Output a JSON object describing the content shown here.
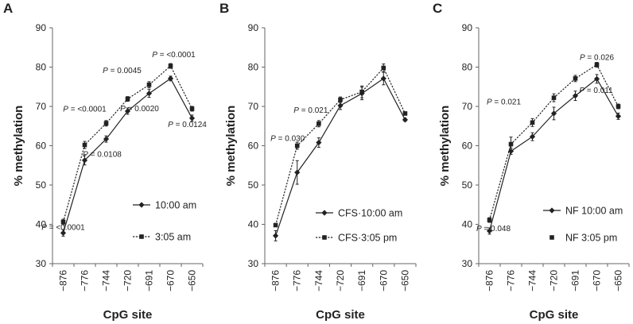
{
  "chart_data": [
    {
      "type": "line",
      "panel_label": "A",
      "categories": [
        "−876",
        "−776",
        "−744",
        "−720",
        "−691",
        "−670",
        "−650"
      ],
      "xlabel": "CpG site",
      "ylabel": "% methylation",
      "ylim": [
        30,
        90
      ],
      "yticks": [
        "30",
        "40",
        "50",
        "60",
        "70",
        "80",
        "90"
      ],
      "series": [
        {
          "name": "10:00 am",
          "line": "solid",
          "marker": "diamond",
          "legend_text": "10:00 am",
          "values": [
            37.8,
            56.3,
            61.7,
            68.8,
            73.3,
            77.1,
            67.0
          ],
          "errors": [
            0.8,
            1.2,
            0.8,
            0.8,
            1.0,
            0.6,
            0.8
          ]
        },
        {
          "name": "3:05 am",
          "line": "dotted",
          "marker": "square",
          "legend_text": "3:05 am",
          "values": [
            40.6,
            60.2,
            65.7,
            71.9,
            75.5,
            80.3,
            69.4
          ],
          "errors": [
            0.7,
            0.9,
            0.7,
            0.6,
            0.8,
            0.6,
            0.6
          ]
        }
      ],
      "annotations": [
        {
          "italic": "P",
          "text": " = <0.0001",
          "point": 0,
          "dx": 0,
          "dy": 10
        },
        {
          "italic": "P",
          "text": " = 0.0108",
          "point": 1,
          "dx": 22,
          "dy": 15
        },
        {
          "italic": "P",
          "text": " = <0.0001",
          "point": 1,
          "dx": 0,
          "dy": -42
        },
        {
          "italic": "P",
          "text": " = 0.0020",
          "point": 4,
          "dx": -12,
          "dy": 33
        },
        {
          "italic": "P",
          "text": " = 0.0045",
          "point": 4,
          "dx": -34,
          "dy": -15
        },
        {
          "italic": "P",
          "text": " = <0.0001",
          "point": 5,
          "dx": 4,
          "dy": -11
        },
        {
          "italic": "P",
          "text": " = 0.0124",
          "point": 6,
          "dx": -6,
          "dy": 23
        }
      ]
    },
    {
      "type": "line",
      "panel_label": "B",
      "categories": [
        "−876",
        "−776",
        "−744",
        "−720",
        "−691",
        "−670",
        "−650"
      ],
      "xlabel": "CpG site",
      "ylabel": "% methylation",
      "ylim": [
        30,
        90
      ],
      "yticks": [
        "30",
        "40",
        "50",
        "60",
        "70",
        "80",
        "90"
      ],
      "series": [
        {
          "name": "CFS 10:00 am",
          "line": "solid",
          "marker": "diamond",
          "legend_text": "CFS·10:00 am",
          "values": [
            37.1,
            53.2,
            60.8,
            70.2,
            73.3,
            77.1,
            66.6
          ],
          "errors": [
            1.3,
            3.0,
            1.2,
            1.0,
            1.6,
            1.6,
            0.4
          ]
        },
        {
          "name": "CFS 3:05 pm",
          "line": "dotted",
          "marker": "square",
          "legend_text": "CFS·3:05 pm",
          "values": [
            39.8,
            60.0,
            65.6,
            71.7,
            73.7,
            79.8,
            68.2
          ],
          "errors": [
            0.4,
            0.9,
            0.8,
            0.7,
            1.5,
            1.0,
            0.3
          ]
        }
      ],
      "annotations": [
        {
          "italic": "P",
          "text": " = 0.030",
          "point": 1,
          "dx": -12,
          "dy": -6
        },
        {
          "italic": "P",
          "text": " = 0.021",
          "point": 2,
          "dx": -10,
          "dy": -14
        }
      ]
    },
    {
      "type": "line",
      "panel_label": "C",
      "categories": [
        "−876",
        "−776",
        "−744",
        "−720",
        "−691",
        "−670",
        "−650"
      ],
      "xlabel": "CpG site",
      "ylabel": "% methylation",
      "ylim": [
        30,
        90
      ],
      "yticks": [
        "30",
        "40",
        "50",
        "60",
        "70",
        "80",
        "90"
      ],
      "series": [
        {
          "name": "NF 10:00 am",
          "line": "solid",
          "marker": "diamond",
          "legend_text": "NF 10:00 am",
          "values": [
            38.3,
            58.6,
            62.3,
            68.2,
            72.7,
            77.0,
            67.5
          ],
          "errors": [
            0.8,
            0.8,
            1.0,
            1.6,
            1.2,
            1.1,
            0.8
          ]
        },
        {
          "name": "NF 3:05 pm",
          "line": "dotted",
          "marker": "square",
          "legend_text": "NF 3:05 pm",
          "values": [
            41.1,
            60.4,
            65.9,
            72.2,
            77.1,
            80.6,
            70.0
          ],
          "errors": [
            0.6,
            1.8,
            1.0,
            1.0,
            0.8,
            0.6,
            0.6
          ]
        }
      ],
      "annotations": [
        {
          "italic": "P",
          "text": " = 0.048",
          "point": 0,
          "dx": 5,
          "dy": 14
        },
        {
          "italic": "P",
          "text": " = 0.021",
          "point": 2,
          "dx": -36,
          "dy": -23
        },
        {
          "italic": "P",
          "text": " = 0.011",
          "point": 4,
          "dx": 26,
          "dy": 18
        },
        {
          "italic": "P",
          "text": " = 0.026",
          "point": 5,
          "dx": 0,
          "dy": -6
        }
      ]
    }
  ]
}
